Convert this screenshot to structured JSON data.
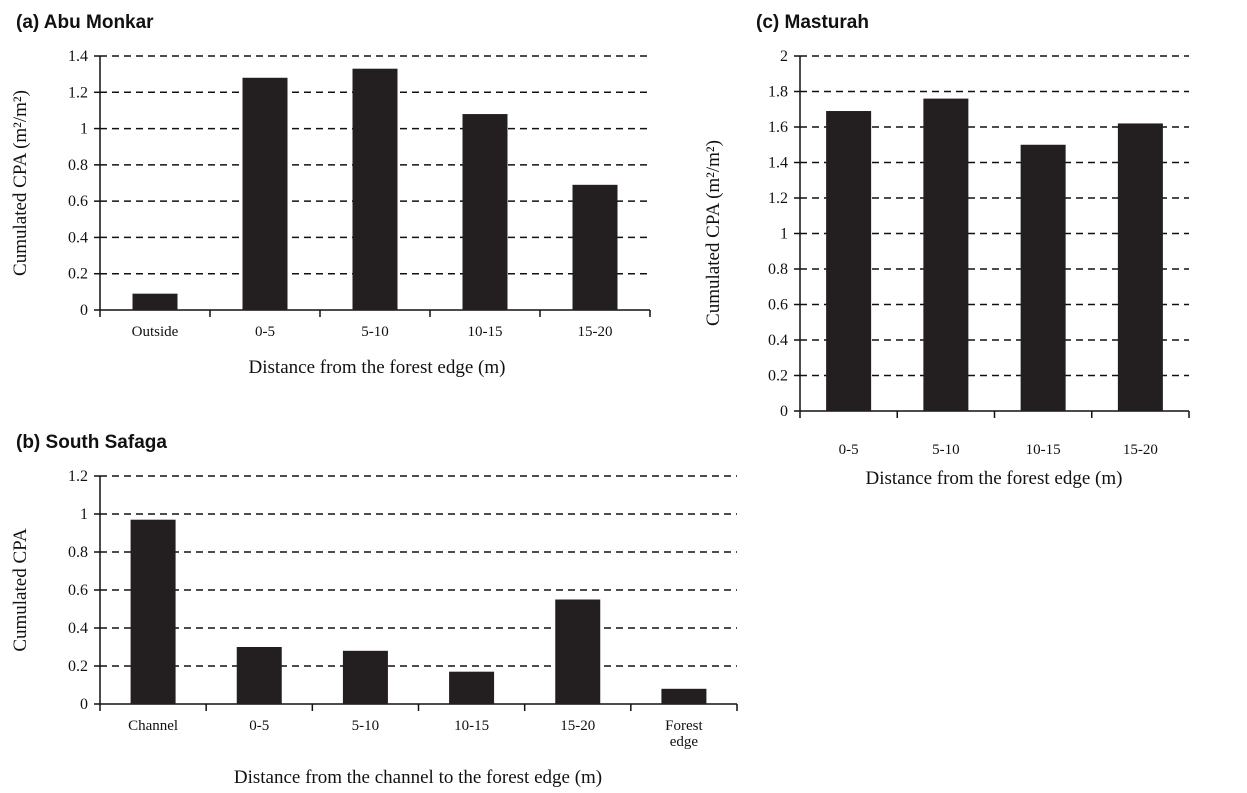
{
  "chart_data": [
    {
      "type": "bar",
      "title": "(a) Abu Monkar",
      "xlabel": "Distance from the forest edge (m)",
      "ylabel": "Cumulated CPA (m²/m²)",
      "categories": [
        "Outside",
        "0-5",
        "5-10",
        "10-15",
        "15-20"
      ],
      "values": [
        0.09,
        1.28,
        1.33,
        1.08,
        0.69
      ],
      "ylim": [
        0,
        1.4
      ],
      "yticks": [
        "0",
        "0.2",
        "0.4",
        "0.6",
        "0.8",
        "1",
        "1.2",
        "1.4"
      ],
      "grid": true
    },
    {
      "type": "bar",
      "title": "(b) South Safaga",
      "xlabel": "Distance from the channel to the forest edge (m)",
      "ylabel": "Cumulated CPA",
      "categories": [
        "Channel",
        "0-5",
        "5-10",
        "10-15",
        "15-20",
        "Forest edge"
      ],
      "values": [
        0.97,
        0.3,
        0.28,
        0.17,
        0.55,
        0.08
      ],
      "ylim": [
        0,
        1.2
      ],
      "yticks": [
        "0",
        "0.2",
        "0.4",
        "0.6",
        "0.8",
        "1",
        "1.2"
      ],
      "grid": true
    },
    {
      "type": "bar",
      "title": "(c) Masturah",
      "xlabel": "Distance from the forest edge (m)",
      "ylabel": "Cumulated CPA (m²/m²)",
      "categories": [
        "0-5",
        "5-10",
        "10-15",
        "15-20"
      ],
      "values": [
        1.69,
        1.76,
        1.5,
        1.62
      ],
      "ylim": [
        0,
        2
      ],
      "yticks": [
        "0",
        "0.2",
        "0.4",
        "0.6",
        "0.8",
        "1",
        "1.2",
        "1.4",
        "1.6",
        "1.8",
        "2"
      ],
      "grid": true
    }
  ]
}
